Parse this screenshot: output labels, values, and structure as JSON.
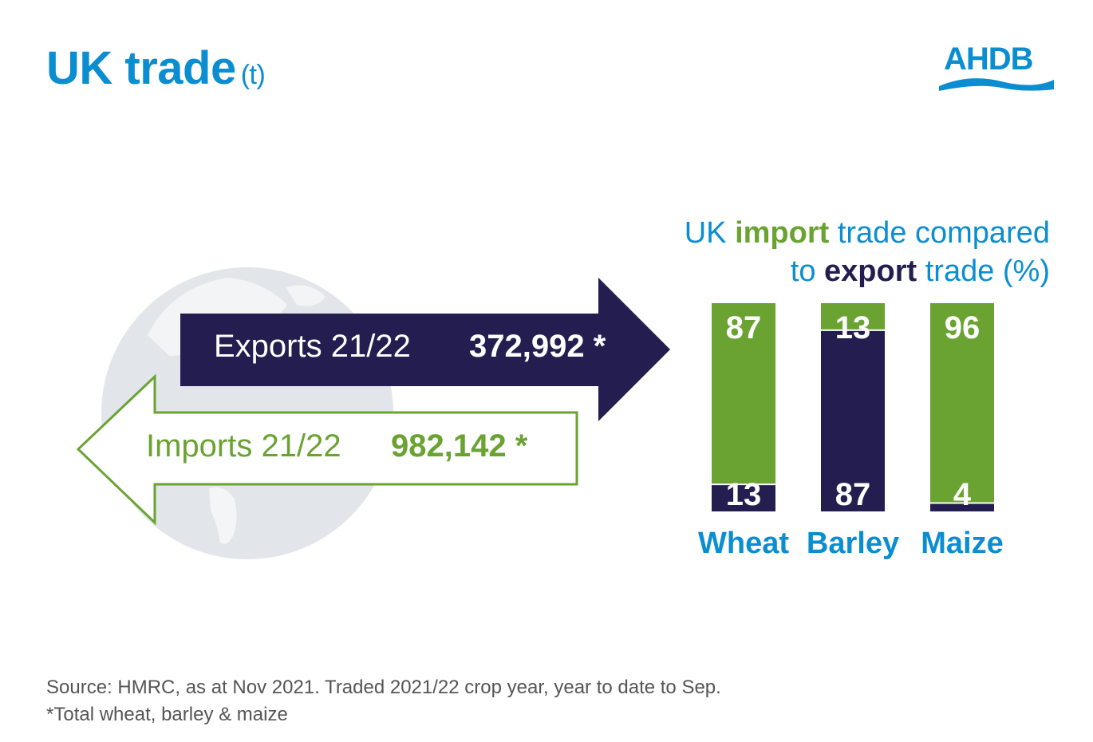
{
  "title": {
    "main": "UK trade",
    "unit": "(t)"
  },
  "logo": {
    "text": "AHDB"
  },
  "exports": {
    "label": "Exports 21/22",
    "value": "372,992 *"
  },
  "imports": {
    "label": "Imports 21/22",
    "value": "982,142 *"
  },
  "chart_title": {
    "p1": "UK ",
    "p2": "import",
    "p3": " trade compared",
    "p4": "to ",
    "p5": "export",
    "p6": " trade (%)"
  },
  "colors": {
    "import": "#6aa332",
    "export": "#241d4f",
    "accent": "#0a8ed1"
  },
  "chart_data": {
    "type": "bar",
    "stacked": true,
    "title": "UK import trade compared to export trade (%)",
    "categories": [
      "Wheat",
      "Barley",
      "Maize"
    ],
    "series": [
      {
        "name": "import",
        "values": [
          87,
          13,
          96
        ]
      },
      {
        "name": "export",
        "values": [
          13,
          87,
          4
        ]
      }
    ],
    "ylim": [
      0,
      100
    ],
    "grid": false
  },
  "footer": {
    "line1": "Source: HMRC, as at Nov 2021. Traded 2021/22 crop year, year to date to Sep.",
    "line2": "*Total wheat, barley & maize"
  }
}
